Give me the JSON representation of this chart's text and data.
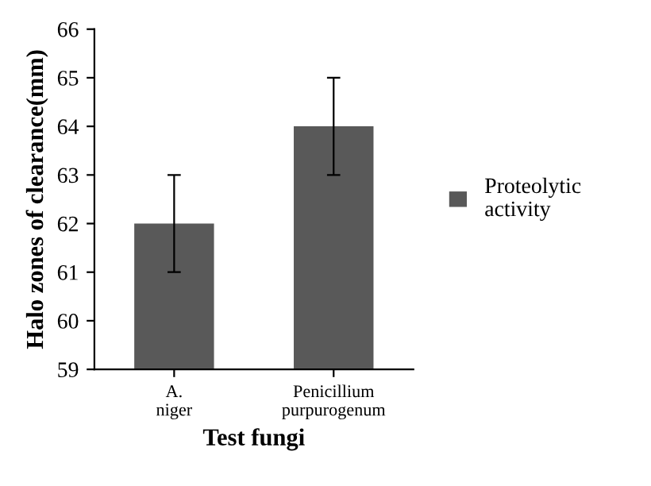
{
  "chart_data": {
    "type": "bar",
    "xlabel": "Test fungi",
    "ylabel": "Halo zones of clearance(mm)",
    "categories": [
      "A. niger",
      "Penicillium purpurogenum"
    ],
    "series": [
      {
        "name": "Proteolytic activity",
        "color": "#595959",
        "values": [
          62,
          64
        ],
        "errors": [
          1,
          1
        ]
      }
    ],
    "ylim": [
      59,
      66
    ],
    "yticks": [
      59,
      60,
      61,
      62,
      63,
      64,
      65,
      66
    ],
    "grid": false,
    "legend": "right"
  }
}
